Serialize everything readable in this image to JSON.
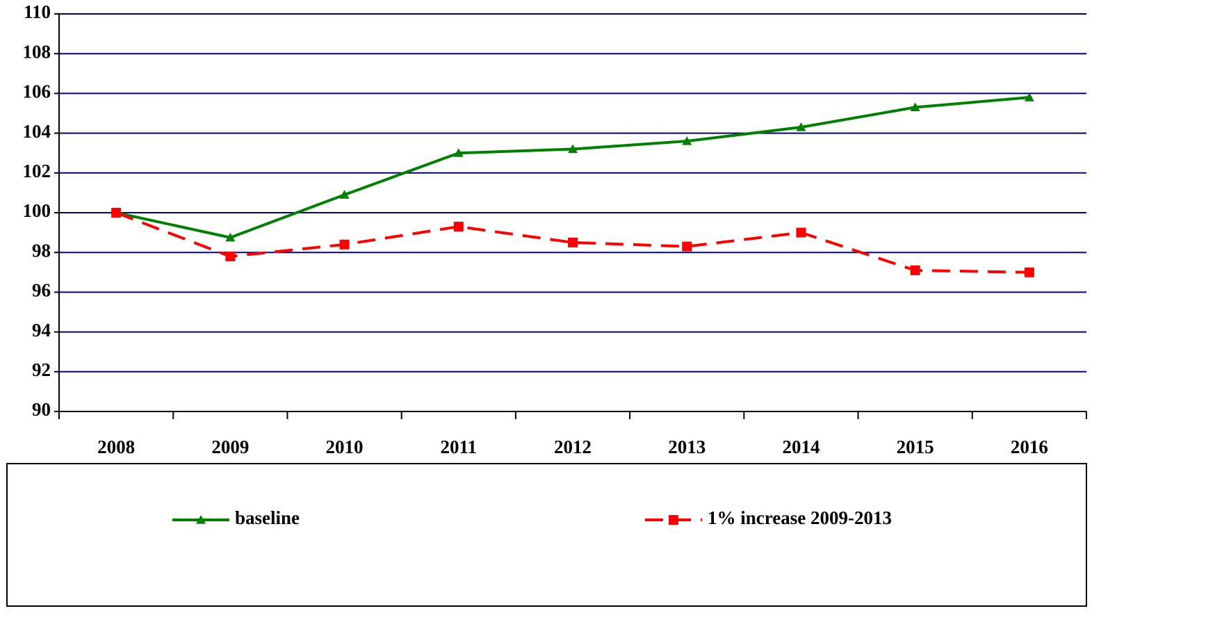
{
  "chart_data": {
    "type": "line",
    "categories": [
      "2008",
      "2009",
      "2010",
      "2011",
      "2012",
      "2013",
      "2014",
      "2015",
      "2016"
    ],
    "series": [
      {
        "name": "baseline",
        "color": "#008000",
        "marker": "triangle",
        "line_style": "solid",
        "values": [
          100,
          98.75,
          100.9,
          103.0,
          103.2,
          103.6,
          104.3,
          105.3,
          105.8
        ]
      },
      {
        "name": "1% increase 2009-2013",
        "color": "#ff0000",
        "marker": "square",
        "line_style": "dashed",
        "values": [
          100,
          97.8,
          98.4,
          99.3,
          98.5,
          98.3,
          99.0,
          97.1,
          97.0
        ]
      }
    ],
    "ylim": [
      90,
      110
    ],
    "yticks": [
      90,
      92,
      94,
      96,
      98,
      100,
      102,
      104,
      106,
      108,
      110
    ],
    "grid": true,
    "grid_color": "#000080",
    "legend": "bottom"
  }
}
